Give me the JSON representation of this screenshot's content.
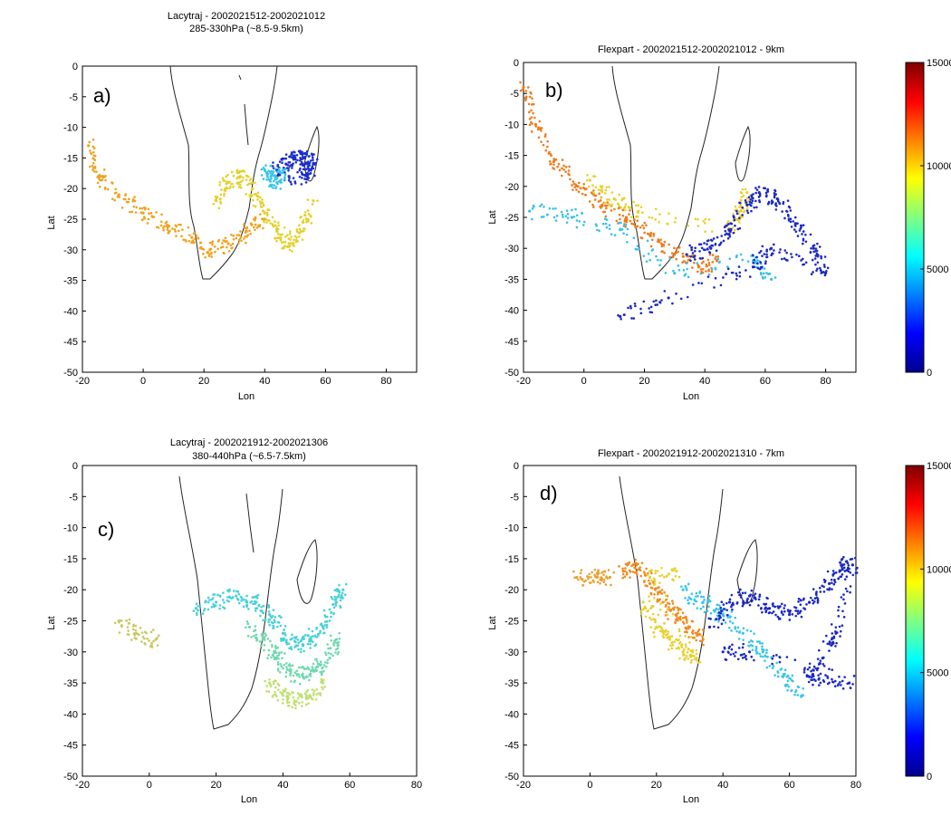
{
  "chart_data": [
    {
      "type": "scatter",
      "panel_label": "a)",
      "title": "Lacytraj - 2002021512-2002021012",
      "subtitle": "285-330hPa (~8.5-9.5km)",
      "xlabel": "Lon",
      "ylabel": "Lat",
      "xlim": [
        -20,
        90
      ],
      "ylim": [
        -50,
        0
      ],
      "xticks": [
        -20,
        0,
        20,
        40,
        60,
        80
      ],
      "yticks": [
        0,
        -5,
        -10,
        -15,
        -20,
        -25,
        -30,
        -35,
        -40,
        -45,
        -50
      ],
      "clusters": [
        {
          "name": "orange-band",
          "color": "#f0a21e",
          "points": [
            [
              -18,
              -13
            ],
            [
              -14,
              -18
            ],
            [
              -8,
              -21
            ],
            [
              0,
              -24
            ],
            [
              8,
              -26
            ],
            [
              16,
              -28
            ],
            [
              22,
              -30
            ],
            [
              28,
              -29
            ],
            [
              34,
              -27
            ],
            [
              40,
              -25
            ]
          ]
        },
        {
          "name": "yellow-band",
          "color": "#e4d02a",
          "points": [
            [
              24,
              -22
            ],
            [
              28,
              -19
            ],
            [
              32,
              -18
            ],
            [
              36,
              -20
            ],
            [
              40,
              -24
            ],
            [
              44,
              -27
            ],
            [
              48,
              -29
            ],
            [
              52,
              -27
            ],
            [
              56,
              -22
            ]
          ]
        },
        {
          "name": "blue-tail",
          "color": "#1a2ecc",
          "points": [
            [
              44,
              -17
            ],
            [
              47,
              -16
            ],
            [
              50,
              -15
            ],
            [
              53,
              -15
            ],
            [
              56,
              -16
            ],
            [
              54,
              -18
            ],
            [
              48,
              -18
            ]
          ]
        },
        {
          "name": "cyan-tail",
          "color": "#38c6e6",
          "points": [
            [
              40,
              -17
            ],
            [
              42,
              -18
            ],
            [
              44,
              -19
            ],
            [
              46,
              -17
            ]
          ]
        }
      ]
    },
    {
      "type": "scatter",
      "panel_label": "b)",
      "title": "Flexpart - 2002021512-2002021012 - 9km",
      "xlabel": "Lon",
      "ylabel": "Lat",
      "xlim": [
        -20,
        90
      ],
      "ylim": [
        -50,
        0
      ],
      "xticks": [
        -20,
        0,
        20,
        40,
        60,
        80
      ],
      "yticks": [
        0,
        -5,
        -10,
        -15,
        -20,
        -25,
        -30,
        -35,
        -40,
        -45,
        -50
      ],
      "colorbar": {
        "min": 0,
        "max": 15000,
        "ticks": [
          0,
          5000,
          10000,
          15000
        ]
      },
      "clusters": [
        {
          "name": "orange-arc",
          "color": "#f07a1a",
          "points": [
            [
              -20,
              -4
            ],
            [
              -16,
              -10
            ],
            [
              -10,
              -16
            ],
            [
              -2,
              -20
            ],
            [
              6,
              -23
            ],
            [
              14,
              -25
            ],
            [
              22,
              -28
            ],
            [
              30,
              -31
            ],
            [
              38,
              -33
            ],
            [
              44,
              -32
            ]
          ]
        },
        {
          "name": "yellow-mid",
          "color": "#e8d12a",
          "points": [
            [
              2,
              -19
            ],
            [
              10,
              -22
            ],
            [
              18,
              -24
            ],
            [
              48,
              -27
            ],
            [
              52,
              -24
            ],
            [
              54,
              -21
            ]
          ]
        },
        {
          "name": "cyan-scatter",
          "color": "#38c0e8",
          "points": [
            [
              -18,
              -24
            ],
            [
              -4,
              -25
            ],
            [
              12,
              -27
            ],
            [
              30,
              -34
            ],
            [
              56,
              -32
            ],
            [
              62,
              -35
            ]
          ]
        },
        {
          "name": "blue-tail",
          "color": "#1a28c4",
          "points": [
            [
              34,
              -31
            ],
            [
              42,
              -30
            ],
            [
              48,
              -27
            ],
            [
              54,
              -23
            ],
            [
              58,
              -21
            ],
            [
              64,
              -22
            ],
            [
              70,
              -26
            ],
            [
              76,
              -30
            ],
            [
              80,
              -34
            ],
            [
              62,
              -30
            ],
            [
              56,
              -33
            ],
            [
              28,
              -38
            ],
            [
              12,
              -41
            ]
          ]
        }
      ]
    },
    {
      "type": "scatter",
      "panel_label": "c)",
      "title": "Lacytraj - 2002021912-2002021306",
      "subtitle": "380-440hPa (~6.5-7.5km)",
      "xlabel": "Lon",
      "ylabel": "Lat",
      "xlim": [
        -20,
        80
      ],
      "ylim": [
        -50,
        0
      ],
      "xticks": [
        -20,
        0,
        20,
        40,
        60,
        80
      ],
      "yticks": [
        0,
        -5,
        -10,
        -15,
        -20,
        -25,
        -30,
        -35,
        -40,
        -45,
        -50
      ],
      "clusters": [
        {
          "name": "cyan-band",
          "color": "#48d0d8",
          "points": [
            [
              14,
              -23
            ],
            [
              20,
              -22
            ],
            [
              26,
              -21
            ],
            [
              32,
              -22
            ],
            [
              36,
              -24
            ],
            [
              40,
              -27
            ],
            [
              44,
              -29
            ],
            [
              48,
              -28
            ],
            [
              52,
              -26
            ],
            [
              56,
              -22
            ],
            [
              58,
              -20
            ]
          ]
        },
        {
          "name": "teal-fan",
          "color": "#70d8b0",
          "points": [
            [
              30,
              -26
            ],
            [
              34,
              -28
            ],
            [
              38,
              -31
            ],
            [
              42,
              -33
            ],
            [
              46,
              -34
            ],
            [
              50,
              -33
            ],
            [
              54,
              -31
            ],
            [
              56,
              -28
            ]
          ]
        },
        {
          "name": "yellow-fan",
          "color": "#bfe070",
          "points": [
            [
              36,
              -35
            ],
            [
              40,
              -37
            ],
            [
              44,
              -38
            ],
            [
              48,
              -37
            ],
            [
              52,
              -35
            ]
          ]
        },
        {
          "name": "sparse-west",
          "color": "#c8c860",
          "points": [
            [
              -9,
              -25
            ],
            [
              -4,
              -27
            ],
            [
              2,
              -28
            ]
          ]
        }
      ]
    },
    {
      "type": "scatter",
      "panel_label": "d)",
      "title": "Flexpart - 2002021912-2002021310 - 7km",
      "xlabel": "Lon",
      "ylabel": "Lat",
      "xlim": [
        -20,
        80
      ],
      "ylim": [
        -50,
        0
      ],
      "xticks": [
        -20,
        0,
        20,
        40,
        60,
        80
      ],
      "yticks": [
        0,
        -5,
        -10,
        -15,
        -20,
        -25,
        -30,
        -35,
        -40,
        -45,
        -50
      ],
      "colorbar": {
        "min": 0,
        "max": 15000,
        "ticks": [
          0,
          5000,
          10000,
          15000
        ]
      },
      "clusters": [
        {
          "name": "orange-core",
          "color": "#f08a1e",
          "points": [
            [
              10,
              -17
            ],
            [
              14,
              -16
            ],
            [
              18,
              -19
            ],
            [
              22,
              -22
            ],
            [
              26,
              -24
            ],
            [
              30,
              -26
            ],
            [
              34,
              -28
            ]
          ]
        },
        {
          "name": "yellow-mid",
          "color": "#e8d030",
          "points": [
            [
              16,
              -22
            ],
            [
              20,
              -26
            ],
            [
              24,
              -28
            ],
            [
              28,
              -30
            ],
            [
              32,
              -31
            ],
            [
              18,
              -18
            ],
            [
              26,
              -17
            ]
          ]
        },
        {
          "name": "cyan-mid",
          "color": "#38c4e8",
          "points": [
            [
              28,
              -20
            ],
            [
              34,
              -22
            ],
            [
              40,
              -24
            ],
            [
              46,
              -27
            ],
            [
              52,
              -30
            ],
            [
              58,
              -34
            ],
            [
              64,
              -37
            ]
          ]
        },
        {
          "name": "blue-east",
          "color": "#1a28c4",
          "points": [
            [
              36,
              -26
            ],
            [
              42,
              -22
            ],
            [
              48,
              -21
            ],
            [
              54,
              -23
            ],
            [
              60,
              -24
            ],
            [
              66,
              -22
            ],
            [
              72,
              -19
            ],
            [
              76,
              -16
            ],
            [
              79,
              -16
            ],
            [
              74,
              -27
            ],
            [
              70,
              -31
            ],
            [
              66,
              -34
            ],
            [
              78,
              -35
            ],
            [
              48,
              -30
            ],
            [
              40,
              -30
            ]
          ]
        },
        {
          "name": "sparse-west",
          "color": "#e8a030",
          "points": [
            [
              -4,
              -18
            ],
            [
              2,
              -18
            ],
            [
              6,
              -18
            ]
          ]
        }
      ]
    }
  ],
  "colorbar": {
    "colors": [
      "#00008f",
      "#0000ff",
      "#0080ff",
      "#00ffff",
      "#80ff80",
      "#ffff00",
      "#ff8000",
      "#ff0000",
      "#800000"
    ]
  }
}
